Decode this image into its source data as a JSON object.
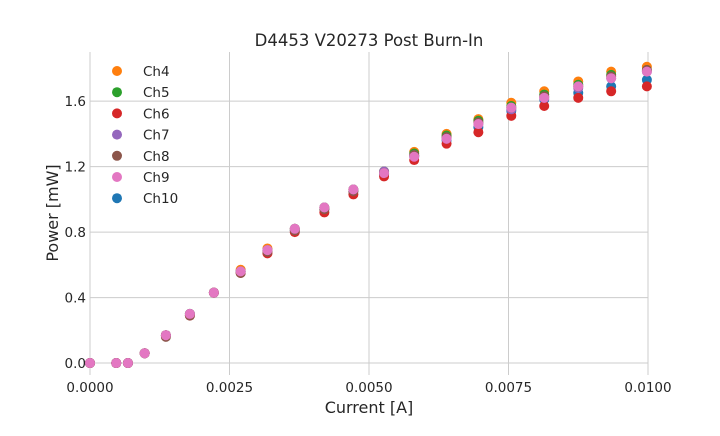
{
  "chart_data": {
    "type": "scatter",
    "title": "D4453 V20273 Post Burn-In",
    "xlabel": "Current [A]",
    "ylabel": "Power [mW]",
    "xlim": [
      0,
      0.01
    ],
    "ylim": [
      -0.073,
      1.9
    ],
    "xticks": [
      "0.0000",
      "0.0025",
      "0.0050",
      "0.0075",
      "0.0100"
    ],
    "xtick_values": [
      0,
      0.0025,
      0.005,
      0.0075,
      0.01
    ],
    "yticks": [
      "0.0",
      "0.4",
      "0.8",
      "1.2",
      "1.6"
    ],
    "ytick_values": [
      0,
      0.4,
      0.8,
      1.2,
      1.6
    ],
    "grid": true,
    "legend_placement": "top-left",
    "x": [
      0,
      0.00047,
      0.00068,
      0.00098,
      0.00136,
      0.00179,
      0.00222,
      0.0027,
      0.00318,
      0.00367,
      0.0042,
      0.00472,
      0.00527,
      0.00581,
      0.00639,
      0.00696,
      0.00755,
      0.00814,
      0.00875,
      0.00934,
      0.00998
    ],
    "series": [
      {
        "name": "Ch4",
        "color": "#ff7f0e",
        "values": [
          0,
          0,
          0,
          0.06,
          0.17,
          0.3,
          0.43,
          0.57,
          0.7,
          0.82,
          0.95,
          1.06,
          1.17,
          1.29,
          1.4,
          1.49,
          1.59,
          1.66,
          1.72,
          1.78,
          1.81
        ]
      },
      {
        "name": "Ch5",
        "color": "#2ca02c",
        "values": [
          0,
          0,
          0,
          0.06,
          0.17,
          0.3,
          0.43,
          0.56,
          0.69,
          0.82,
          0.95,
          1.06,
          1.17,
          1.28,
          1.39,
          1.48,
          1.57,
          1.64,
          1.7,
          1.76,
          1.79
        ]
      },
      {
        "name": "Ch6",
        "color": "#d62728",
        "values": [
          0,
          0,
          0,
          0.06,
          0.17,
          0.29,
          0.43,
          0.55,
          0.67,
          0.8,
          0.92,
          1.03,
          1.14,
          1.24,
          1.34,
          1.41,
          1.51,
          1.57,
          1.62,
          1.66,
          1.69
        ]
      },
      {
        "name": "Ch7",
        "color": "#9467bd",
        "values": [
          0,
          0,
          0,
          0.06,
          0.17,
          0.3,
          0.43,
          0.56,
          0.69,
          0.82,
          0.95,
          1.06,
          1.17,
          1.27,
          1.37,
          1.46,
          1.55,
          1.62,
          1.68,
          1.74,
          1.78
        ]
      },
      {
        "name": "Ch8",
        "color": "#8c564b",
        "values": [
          0,
          0,
          0,
          0.06,
          0.16,
          0.29,
          0.43,
          0.55,
          0.68,
          0.81,
          0.94,
          1.05,
          1.16,
          1.27,
          1.38,
          1.47,
          1.56,
          1.63,
          1.69,
          1.75,
          1.79
        ]
      },
      {
        "name": "Ch9",
        "color": "#e377c2",
        "values": [
          0,
          0,
          0,
          0.06,
          0.17,
          0.3,
          0.43,
          0.56,
          0.69,
          0.82,
          0.95,
          1.06,
          1.16,
          1.26,
          1.37,
          1.46,
          1.56,
          1.62,
          1.69,
          1.74,
          1.78
        ]
      },
      {
        "name": "Ch10",
        "color": "#1f77b4",
        "values": [
          0,
          0,
          0,
          0.06,
          0.17,
          0.3,
          0.43,
          0.56,
          0.69,
          0.81,
          0.94,
          1.05,
          1.15,
          1.26,
          1.36,
          1.44,
          1.54,
          1.61,
          1.65,
          1.69,
          1.73
        ]
      }
    ]
  }
}
